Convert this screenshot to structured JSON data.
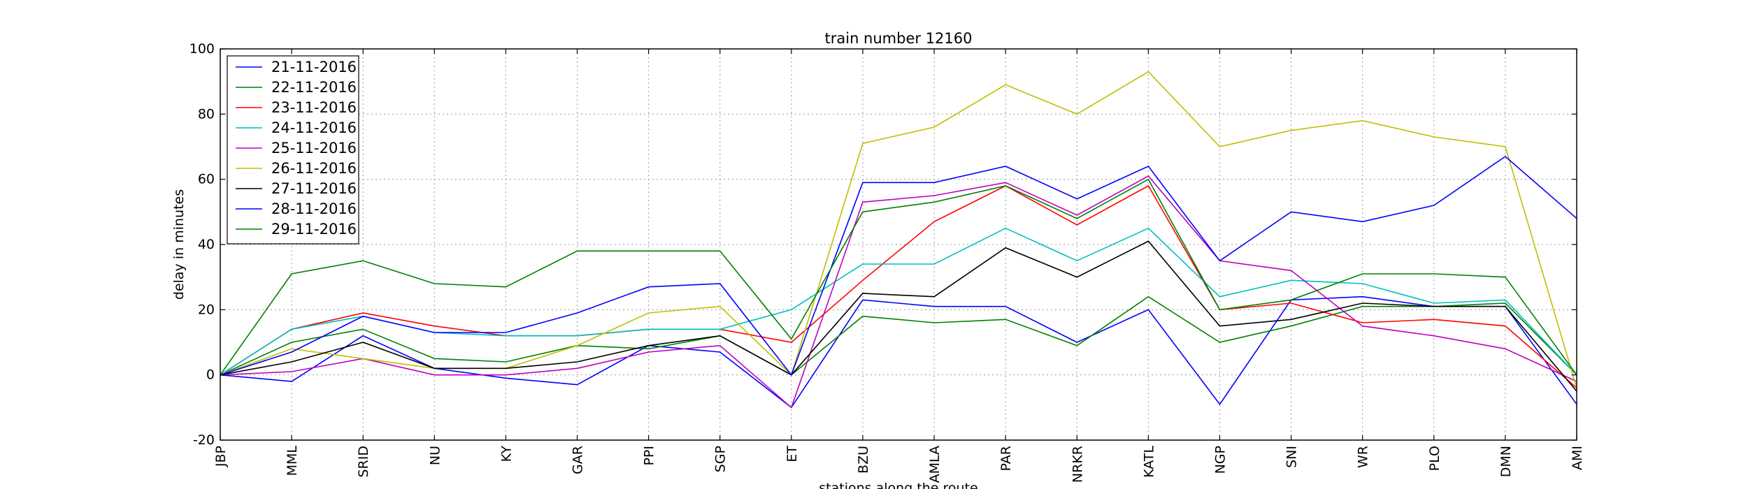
{
  "chart_data": {
    "type": "line",
    "title": "train number 12160",
    "xlabel": "stations along the route",
    "ylabel": "delay in minutes",
    "ylim": [
      -20,
      100
    ],
    "yticks": [
      -20,
      0,
      20,
      40,
      60,
      80,
      100
    ],
    "grid": true,
    "legend_position": "top-left",
    "categories": [
      "JBP",
      "MML",
      "SRID",
      "NU",
      "KY",
      "GAR",
      "PPI",
      "SGP",
      "ET",
      "BZU",
      "AMLA",
      "PAR",
      "NRKR",
      "KATL",
      "NGP",
      "SNI",
      "WR",
      "PLO",
      "DMN",
      "AMI"
    ],
    "series": [
      {
        "name": "21-11-2016",
        "color": "#0000ff",
        "values": [
          0,
          -2,
          12,
          2,
          -1,
          -3,
          9,
          7,
          -10,
          23,
          21,
          21,
          10,
          20,
          -9,
          23,
          24,
          21,
          21,
          -9
        ]
      },
      {
        "name": "22-11-2016",
        "color": "#008000",
        "values": [
          0,
          10,
          14,
          5,
          4,
          9,
          8,
          12,
          0,
          18,
          16,
          17,
          9,
          24,
          10,
          15,
          21,
          21,
          22,
          0
        ]
      },
      {
        "name": "23-11-2016",
        "color": "#ff0000",
        "values": [
          0,
          14,
          19,
          15,
          12,
          12,
          14,
          14,
          10,
          29,
          47,
          58,
          46,
          58,
          20,
          22,
          16,
          17,
          15,
          -4
        ]
      },
      {
        "name": "24-11-2016",
        "color": "#00bfbf",
        "values": [
          0,
          14,
          18,
          13,
          12,
          12,
          14,
          14,
          20,
          34,
          34,
          45,
          35,
          45,
          24,
          29,
          28,
          22,
          23,
          0
        ]
      },
      {
        "name": "25-11-2016",
        "color": "#bf00bf",
        "values": [
          0,
          1,
          5,
          0,
          0,
          2,
          7,
          9,
          -10,
          53,
          55,
          59,
          49,
          61,
          35,
          32,
          15,
          12,
          8,
          -2
        ]
      },
      {
        "name": "26-11-2016",
        "color": "#bfbf00",
        "values": [
          0,
          8,
          5,
          2,
          2,
          9,
          19,
          21,
          0,
          71,
          76,
          89,
          80,
          93,
          70,
          75,
          78,
          73,
          70,
          -4
        ]
      },
      {
        "name": "27-11-2016",
        "color": "#000000",
        "values": [
          0,
          4,
          10,
          2,
          2,
          4,
          9,
          12,
          0,
          25,
          24,
          39,
          30,
          41,
          15,
          17,
          22,
          21,
          21,
          -5
        ]
      },
      {
        "name": "28-11-2016",
        "color": "#0000ff",
        "values": [
          0,
          7,
          18,
          13,
          13,
          19,
          27,
          28,
          0,
          59,
          59,
          64,
          54,
          64,
          35,
          50,
          47,
          52,
          67,
          48
        ]
      },
      {
        "name": "29-11-2016",
        "color": "#008000",
        "values": [
          0,
          31,
          35,
          28,
          27,
          38,
          38,
          38,
          11,
          50,
          53,
          58,
          48,
          60,
          20,
          23,
          31,
          31,
          30,
          0
        ]
      }
    ]
  }
}
